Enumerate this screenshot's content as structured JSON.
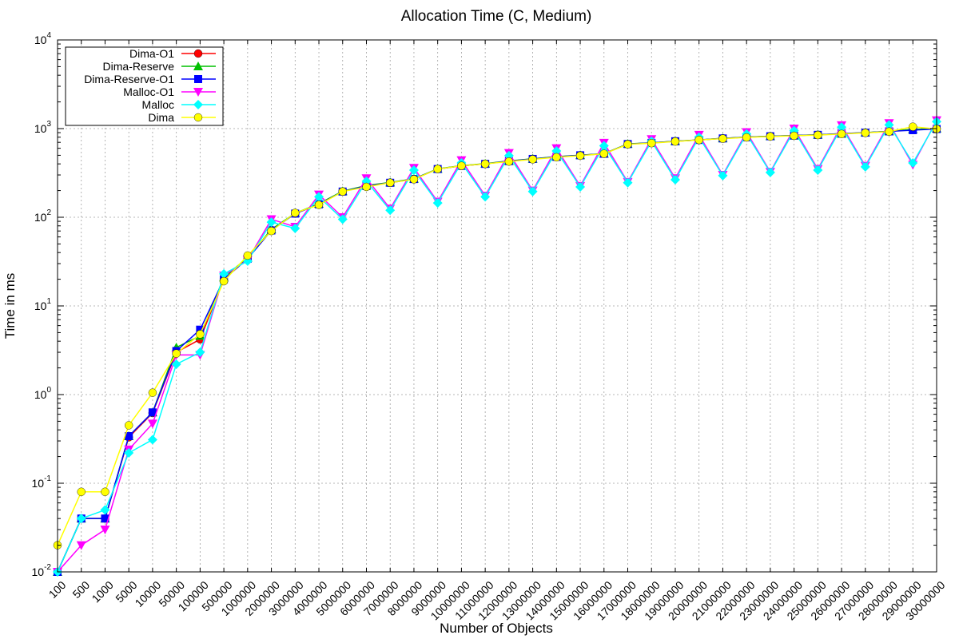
{
  "chart_data": {
    "type": "line",
    "title": "Allocation Time (C, Medium)",
    "xlabel": "Number of Objects",
    "ylabel": "Time in ms",
    "yscale": "log",
    "ylim": [
      0.01,
      10000
    ],
    "y_ticks": [
      {
        "base": "10",
        "exp": "-2"
      },
      {
        "base": "10",
        "exp": "-1"
      },
      {
        "base": "10",
        "exp": "0"
      },
      {
        "base": "10",
        "exp": "1"
      },
      {
        "base": "10",
        "exp": "2"
      },
      {
        "base": "10",
        "exp": "3"
      },
      {
        "base": "10",
        "exp": "4"
      }
    ],
    "grid": true,
    "legend_position": "top-left",
    "categories": [
      "100",
      "500",
      "1000",
      "5000",
      "10000",
      "50000",
      "100000",
      "500000",
      "1000000",
      "2000000",
      "3000000",
      "4000000",
      "5000000",
      "6000000",
      "7000000",
      "8000000",
      "9000000",
      "10000000",
      "11000000",
      "12000000",
      "13000000",
      "14000000",
      "15000000",
      "16000000",
      "17000000",
      "18000000",
      "19000000",
      "20000000",
      "21000000",
      "22000000",
      "23000000",
      "24000000",
      "25000000",
      "26000000",
      "27000000",
      "28000000",
      "29000000",
      "30000000"
    ],
    "series": [
      {
        "name": "Dima-O1",
        "color": "#ff0000",
        "marker": "circle",
        "values": [
          0.01,
          0.04,
          0.04,
          0.33,
          0.62,
          3.0,
          4.2,
          20,
          34,
          72,
          110,
          140,
          195,
          225,
          245,
          270,
          350,
          380,
          400,
          430,
          455,
          480,
          500,
          520,
          670,
          690,
          720,
          745,
          775,
          800,
          820,
          835,
          850,
          875,
          900,
          930,
          980,
          1000
        ]
      },
      {
        "name": "Dima-Reserve",
        "color": "#00c000",
        "marker": "triangle-up",
        "values": [
          0.01,
          0.04,
          0.04,
          0.34,
          0.63,
          3.4,
          4.6,
          21,
          35,
          73,
          111,
          142,
          197,
          228,
          247,
          272,
          352,
          382,
          402,
          432,
          457,
          482,
          502,
          522,
          672,
          692,
          722,
          747,
          777,
          802,
          822,
          837,
          852,
          877,
          902,
          932,
          982,
          1002
        ]
      },
      {
        "name": "Dima-Reserve-O1",
        "color": "#0000ff",
        "marker": "square",
        "values": [
          0.01,
          0.04,
          0.04,
          0.34,
          0.63,
          3.1,
          5.4,
          20,
          34,
          71,
          110,
          140,
          195,
          225,
          245,
          270,
          350,
          380,
          400,
          430,
          455,
          480,
          500,
          520,
          670,
          690,
          720,
          745,
          775,
          800,
          820,
          835,
          850,
          880,
          900,
          930,
          960,
          990
        ]
      },
      {
        "name": "Malloc-O1",
        "color": "#ff00ff",
        "marker": "triangle-down",
        "values": [
          0.01,
          0.02,
          0.03,
          0.24,
          0.47,
          2.8,
          2.8,
          22,
          33,
          95,
          78,
          180,
          100,
          275,
          125,
          360,
          150,
          440,
          175,
          530,
          200,
          600,
          225,
          690,
          250,
          760,
          275,
          850,
          300,
          910,
          325,
          1000,
          350,
          1090,
          380,
          1150,
          390,
          1240
        ]
      },
      {
        "name": "Malloc",
        "color": "#00ffff",
        "marker": "diamond",
        "values": [
          0.01,
          0.04,
          0.05,
          0.22,
          0.31,
          2.2,
          3.0,
          23,
          32,
          88,
          75,
          170,
          95,
          255,
          120,
          340,
          145,
          410,
          170,
          495,
          195,
          560,
          220,
          640,
          245,
          720,
          265,
          800,
          295,
          870,
          320,
          950,
          340,
          1040,
          370,
          1100,
          410,
          1200
        ]
      },
      {
        "name": "Dima",
        "color": "#ffff00",
        "marker": "circle",
        "values": [
          0.02,
          0.08,
          0.08,
          0.45,
          1.05,
          2.9,
          4.8,
          19,
          37,
          70,
          112,
          138,
          195,
          220,
          245,
          268,
          350,
          380,
          400,
          425,
          450,
          475,
          495,
          520,
          665,
          685,
          715,
          745,
          770,
          795,
          815,
          830,
          845,
          870,
          895,
          925,
          1050,
          990
        ]
      }
    ]
  }
}
